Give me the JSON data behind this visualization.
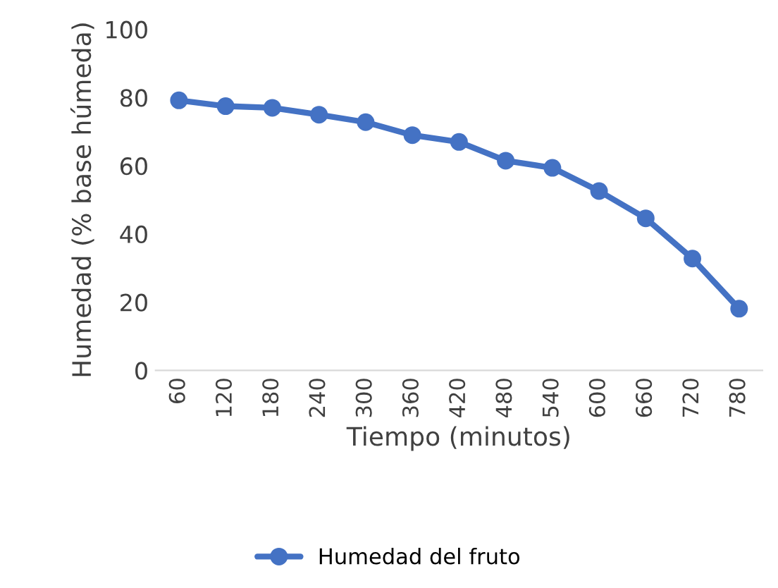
{
  "chart_data": {
    "type": "line",
    "xlabel": "Tiempo (minutos)",
    "ylabel": "Humedad (% base húmeda)",
    "categories": [
      "60",
      "120",
      "180",
      "240",
      "300",
      "360",
      "420",
      "480",
      "540",
      "600",
      "660",
      "720",
      "780"
    ],
    "series": [
      {
        "name": "Humedad del fruto",
        "color": "#4472c4",
        "values": [
          79.2,
          77.5,
          77,
          75,
          72.8,
          69,
          67,
          61.5,
          59.4,
          52.6,
          44.6,
          32.8,
          18.1
        ]
      }
    ],
    "ylim": [
      0,
      100
    ],
    "yticks": [
      0,
      20,
      40,
      60,
      80,
      100
    ],
    "grid": false,
    "legend": "bottom",
    "marker": "circle",
    "line_style": "solid"
  }
}
